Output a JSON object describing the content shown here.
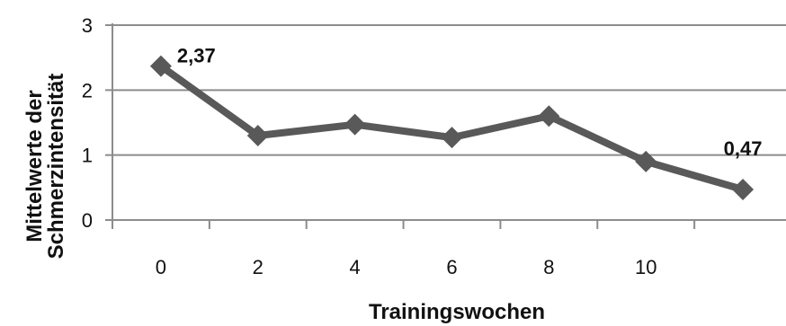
{
  "chart_data": {
    "type": "line",
    "xlabel": "Trainingswochen",
    "ylabel_lines": [
      "Mittelwerte der",
      "Schmerzintensität"
    ],
    "x_ticks": [
      "0",
      "2",
      "4",
      "6",
      "8",
      "10"
    ],
    "y_ticks": [
      "0",
      "1",
      "2",
      "3"
    ],
    "ylim": [
      0,
      3
    ],
    "grid": true,
    "series": [
      {
        "x": [
          "0",
          "2",
          "4",
          "6",
          "8",
          "10",
          "12"
        ],
        "values": [
          2.37,
          1.3,
          1.47,
          1.27,
          1.6,
          0.9,
          0.47
        ]
      }
    ],
    "data_labels": [
      {
        "index": 0,
        "text": "2,37"
      },
      {
        "index": 6,
        "text": "0,47"
      }
    ],
    "colors": {
      "line": "#595959",
      "grid": "#8c8c8c",
      "axis": "#8c8c8c"
    }
  }
}
